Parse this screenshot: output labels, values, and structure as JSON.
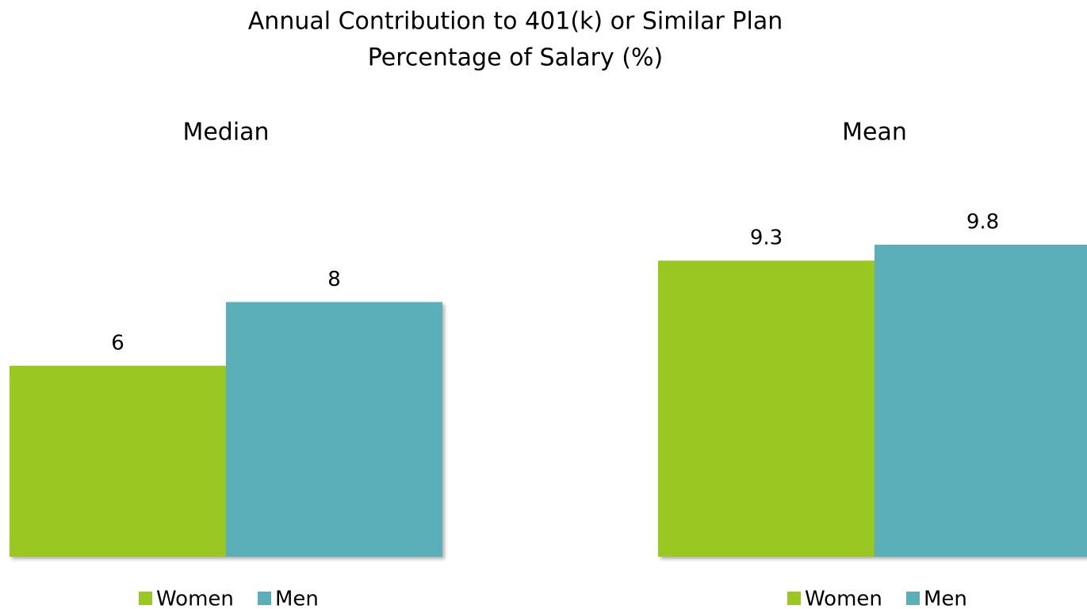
{
  "title": "Annual Contribution to 401(k) or Similar Plan",
  "subtitle": "Percentage of Salary (%)",
  "chart_data": [
    {
      "type": "bar",
      "title": "Median",
      "series": [
        {
          "name": "Women",
          "color": "#9bc723",
          "values": [
            6
          ]
        },
        {
          "name": "Men",
          "color": "#5aafb8",
          "values": [
            8
          ]
        }
      ],
      "ylim": [
        0,
        10
      ],
      "legend": "bottom"
    },
    {
      "type": "bar",
      "title": "Mean",
      "series": [
        {
          "name": "Women",
          "color": "#9bc723",
          "values": [
            9.3
          ]
        },
        {
          "name": "Men",
          "color": "#5aafb8",
          "values": [
            9.8
          ]
        }
      ],
      "ylim": [
        0,
        10
      ],
      "legend": "bottom"
    }
  ]
}
